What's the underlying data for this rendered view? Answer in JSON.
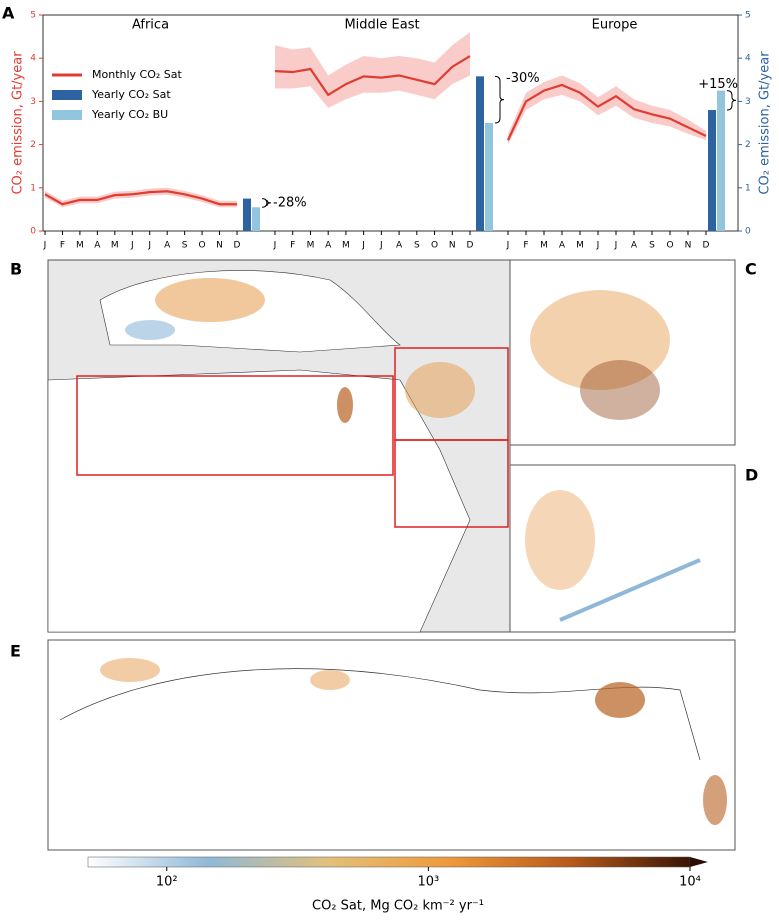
{
  "chart_data": {
    "type": "line",
    "panel": "A",
    "ylabel": "CO₂ emission, Gt/year",
    "y2label": "CO₂ emission, Gt/year",
    "ylim": [
      0,
      5
    ],
    "yticks": [
      0,
      1,
      2,
      3,
      4,
      5
    ],
    "y2lim": [
      0,
      5
    ],
    "y2ticks": [
      0,
      1,
      2,
      3,
      4,
      5
    ],
    "legend": [
      {
        "name": "Monthly CO₂ Sat",
        "color": "#e03c31"
      },
      {
        "name": "Yearly CO₂ Sat",
        "color": "#2c63a0"
      },
      {
        "name": "Yearly CO₂ BU",
        "color": "#92c5de"
      }
    ],
    "band_color": "#f7b6b2",
    "regions": [
      {
        "name": "Africa",
        "categories": [
          "J",
          "F",
          "M",
          "A",
          "M",
          "J",
          "J",
          "A",
          "S",
          "O",
          "N",
          "D"
        ],
        "values": [
          0.85,
          0.62,
          0.72,
          0.72,
          0.83,
          0.85,
          0.9,
          0.92,
          0.85,
          0.75,
          0.62,
          0.62
        ],
        "lower": [
          0.77,
          0.55,
          0.64,
          0.64,
          0.75,
          0.77,
          0.82,
          0.84,
          0.77,
          0.67,
          0.55,
          0.55
        ],
        "upper": [
          0.93,
          0.7,
          0.8,
          0.8,
          0.91,
          0.93,
          0.98,
          1.0,
          0.93,
          0.83,
          0.7,
          0.7
        ],
        "yearly_sat": 0.75,
        "yearly_bu": 0.55,
        "change": "-28%"
      },
      {
        "name": "Middle East",
        "categories": [
          "J",
          "F",
          "M",
          "A",
          "M",
          "J",
          "J",
          "A",
          "S",
          "O",
          "N",
          "D"
        ],
        "values": [
          3.7,
          3.68,
          3.75,
          3.15,
          3.4,
          3.58,
          3.55,
          3.6,
          3.5,
          3.4,
          3.8,
          4.05
        ],
        "lower": [
          3.3,
          3.3,
          3.35,
          2.85,
          3.05,
          3.2,
          3.2,
          3.25,
          3.15,
          3.05,
          3.4,
          3.6
        ],
        "upper": [
          4.3,
          4.2,
          4.25,
          3.6,
          3.85,
          4.05,
          4.0,
          4.05,
          4.0,
          3.9,
          4.3,
          4.6
        ],
        "yearly_sat": 3.58,
        "yearly_bu": 2.5,
        "change": "-30%"
      },
      {
        "name": "Europe",
        "categories": [
          "J",
          "F",
          "M",
          "A",
          "M",
          "J",
          "J",
          "A",
          "S",
          "O",
          "N",
          "D"
        ],
        "values": [
          2.1,
          3.0,
          3.25,
          3.38,
          3.2,
          2.88,
          3.12,
          2.82,
          2.7,
          2.6,
          2.4,
          2.2
        ],
        "lower": [
          2.0,
          2.8,
          3.05,
          3.15,
          3.0,
          2.68,
          2.9,
          2.62,
          2.5,
          2.42,
          2.25,
          2.1
        ],
        "upper": [
          2.25,
          3.2,
          3.45,
          3.6,
          3.42,
          3.1,
          3.35,
          3.05,
          2.9,
          2.8,
          2.58,
          2.32
        ],
        "yearly_sat": 2.8,
        "yearly_bu": 3.25,
        "change": "+15%"
      }
    ],
    "maps": {
      "labels": [
        "B",
        "C",
        "D",
        "E"
      ]
    },
    "colorbar": {
      "label": "CO₂ Sat, Mg CO₂ km⁻² yr⁻¹",
      "log": true,
      "clim": [
        50,
        10000
      ],
      "ticks": [
        {
          "value": 100,
          "label": "10²"
        },
        {
          "value": 1000,
          "label": "10³"
        },
        {
          "value": 10000,
          "label": "10⁴"
        }
      ]
    }
  }
}
